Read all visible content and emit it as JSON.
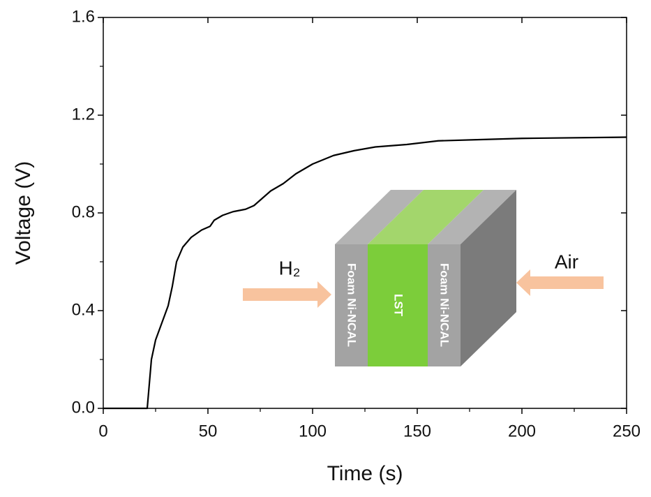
{
  "chart_data": {
    "type": "line",
    "x_label": "Time (s)",
    "y_label": "Voltage (V)",
    "x": [
      0,
      10,
      20,
      21,
      22,
      23,
      25,
      28,
      31,
      33,
      35,
      38,
      42,
      47,
      51,
      53,
      57,
      62,
      68,
      72,
      76,
      80,
      86,
      92,
      100,
      110,
      120,
      130,
      145,
      160,
      180,
      200,
      250
    ],
    "series": [
      {
        "color": "#000000",
        "values": [
          0,
          0,
          0,
          0.0,
          0.1,
          0.2,
          0.28,
          0.35,
          0.42,
          0.5,
          0.6,
          0.66,
          0.7,
          0.73,
          0.745,
          0.77,
          0.79,
          0.805,
          0.815,
          0.83,
          0.86,
          0.89,
          0.92,
          0.96,
          1.0,
          1.035,
          1.055,
          1.07,
          1.08,
          1.095,
          1.1,
          1.105,
          1.11
        ]
      }
    ],
    "xlim": [
      0,
      250
    ],
    "xticks": [
      0,
      50,
      100,
      150,
      200,
      250
    ],
    "xminorticks": [
      25,
      75,
      125,
      175,
      225
    ],
    "ylim": [
      0,
      1.6
    ],
    "yticks": [
      {
        "value": 0,
        "label": "0.0"
      },
      0.4,
      0.8,
      1.2,
      1.6
    ],
    "yminorticks": [
      0.2,
      0.6,
      1.0,
      1.4
    ],
    "inset": {
      "left_gas": "H₂",
      "right_gas": "Air",
      "left_layer": "Foam Ni-NCAL",
      "middle_layer": "LST",
      "right_layer": "Foam Ni-NCAL"
    }
  }
}
